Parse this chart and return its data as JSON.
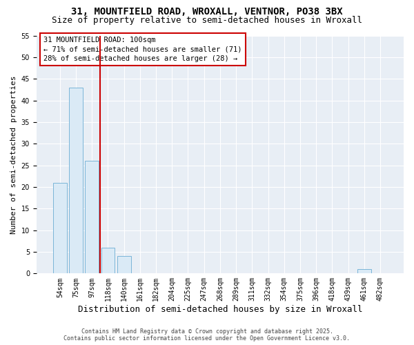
{
  "title": "31, MOUNTFIELD ROAD, WROXALL, VENTNOR, PO38 3BX",
  "subtitle": "Size of property relative to semi-detached houses in Wroxall",
  "xlabel": "Distribution of semi-detached houses by size in Wroxall",
  "ylabel": "Number of semi-detached properties",
  "categories": [
    "54sqm",
    "75sqm",
    "97sqm",
    "118sqm",
    "140sqm",
    "161sqm",
    "182sqm",
    "204sqm",
    "225sqm",
    "247sqm",
    "268sqm",
    "289sqm",
    "311sqm",
    "332sqm",
    "354sqm",
    "375sqm",
    "396sqm",
    "418sqm",
    "439sqm",
    "461sqm",
    "482sqm"
  ],
  "values": [
    21,
    43,
    26,
    6,
    4,
    0,
    0,
    0,
    0,
    0,
    0,
    0,
    0,
    0,
    0,
    0,
    0,
    0,
    0,
    1,
    0
  ],
  "bar_color": "#daeaf6",
  "bar_edge_color": "#7ab5d8",
  "marker_line_index": 2,
  "marker_line_color": "#cc0000",
  "ylim": [
    0,
    55
  ],
  "yticks": [
    0,
    5,
    10,
    15,
    20,
    25,
    30,
    35,
    40,
    45,
    50,
    55
  ],
  "annotation_title": "31 MOUNTFIELD ROAD: 100sqm",
  "annotation_line1": "← 71% of semi-detached houses are smaller (71)",
  "annotation_line2": "28% of semi-detached houses are larger (28) →",
  "annotation_color": "#cc0000",
  "bg_color": "#e8eef5",
  "footer_line1": "Contains HM Land Registry data © Crown copyright and database right 2025.",
  "footer_line2": "Contains public sector information licensed under the Open Government Licence v3.0.",
  "title_fontsize": 10,
  "subtitle_fontsize": 9,
  "xlabel_fontsize": 9,
  "ylabel_fontsize": 8,
  "tick_fontsize": 7,
  "annotation_fontsize": 7.5,
  "footer_fontsize": 6
}
